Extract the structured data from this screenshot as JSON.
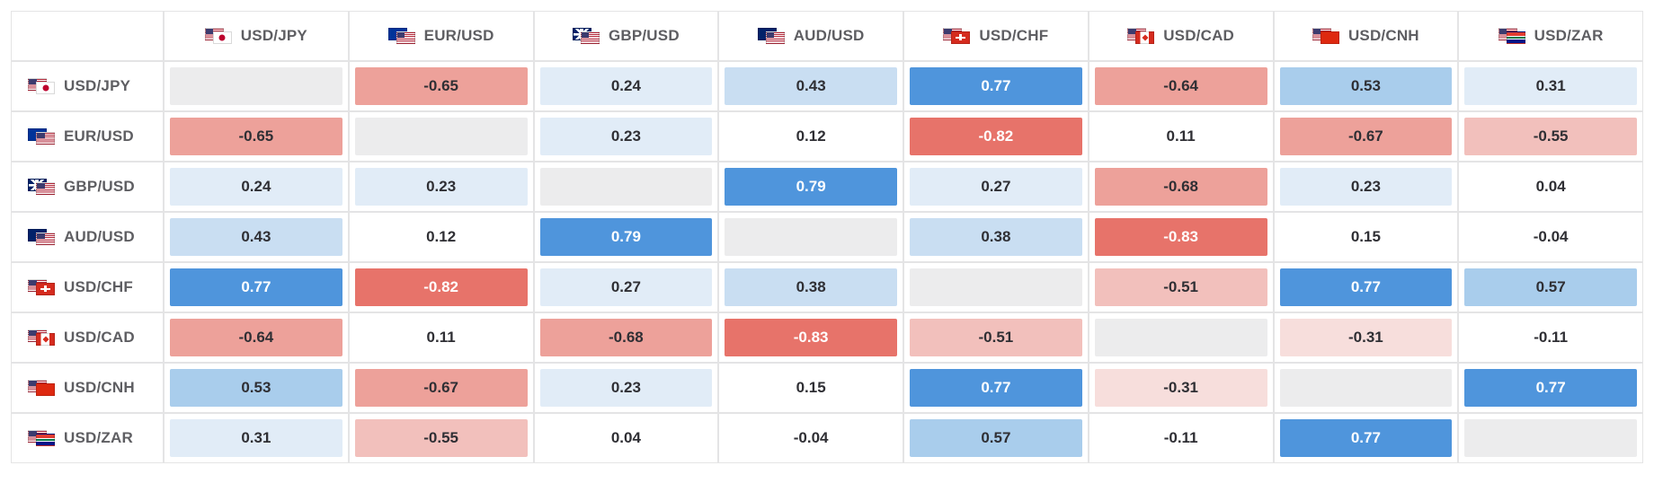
{
  "pairs": [
    {
      "label": "USD/JPY",
      "flagA": "us",
      "flagB": "jp"
    },
    {
      "label": "EUR/USD",
      "flagA": "eu",
      "flagB": "us"
    },
    {
      "label": "GBP/USD",
      "flagA": "gb",
      "flagB": "us"
    },
    {
      "label": "AUD/USD",
      "flagA": "au",
      "flagB": "us"
    },
    {
      "label": "USD/CHF",
      "flagA": "us",
      "flagB": "ch"
    },
    {
      "label": "USD/CAD",
      "flagA": "us",
      "flagB": "ca"
    },
    {
      "label": "USD/CNH",
      "flagA": "us",
      "flagB": "cn"
    },
    {
      "label": "USD/ZAR",
      "flagA": "us",
      "flagB": "za"
    }
  ],
  "matrix": [
    [
      null,
      -0.65,
      0.24,
      0.43,
      0.77,
      -0.64,
      0.53,
      0.31
    ],
    [
      -0.65,
      null,
      0.23,
      0.12,
      -0.82,
      0.11,
      -0.67,
      -0.55
    ],
    [
      0.24,
      0.23,
      null,
      0.79,
      0.27,
      -0.68,
      0.23,
      0.04
    ],
    [
      0.43,
      0.12,
      0.79,
      null,
      0.38,
      -0.83,
      0.15,
      -0.04
    ],
    [
      0.77,
      -0.82,
      0.27,
      0.38,
      null,
      -0.51,
      0.77,
      0.57
    ],
    [
      -0.64,
      0.11,
      -0.68,
      -0.83,
      -0.51,
      null,
      -0.31,
      -0.11
    ],
    [
      0.53,
      -0.67,
      0.23,
      0.15,
      0.77,
      -0.31,
      null,
      0.77
    ],
    [
      0.31,
      -0.55,
      0.04,
      -0.04,
      0.57,
      -0.11,
      0.77,
      null
    ]
  ],
  "style": {
    "type": "heatmap-table",
    "diag_bg": "#ececed",
    "border_color": "#e4e4e5",
    "text_color": "#2f2f34",
    "label_color": "#5e5e62",
    "font_size": 17,
    "font_weight": 700,
    "neg_scale": [
      {
        "t": 0.8,
        "bg": "#e7736a",
        "fg": "#ffffff"
      },
      {
        "t": 0.6,
        "bg": "#eda19a",
        "fg": "#2f2f34"
      },
      {
        "t": 0.45,
        "bg": "#f2c0bc",
        "fg": "#2f2f34"
      },
      {
        "t": 0.25,
        "bg": "#f7dedc",
        "fg": "#2f2f34"
      },
      {
        "t": 0.0,
        "bg": "#ffffff",
        "fg": "#2f2f34"
      }
    ],
    "pos_scale": [
      {
        "t": 0.7,
        "bg": "#4f95dc",
        "fg": "#ffffff"
      },
      {
        "t": 0.5,
        "bg": "#a9cdec",
        "fg": "#2f2f34"
      },
      {
        "t": 0.35,
        "bg": "#c9def2",
        "fg": "#2f2f34"
      },
      {
        "t": 0.2,
        "bg": "#e1ecf7",
        "fg": "#2f2f34"
      },
      {
        "t": 0.0,
        "bg": "#ffffff",
        "fg": "#2f2f34"
      }
    ]
  }
}
